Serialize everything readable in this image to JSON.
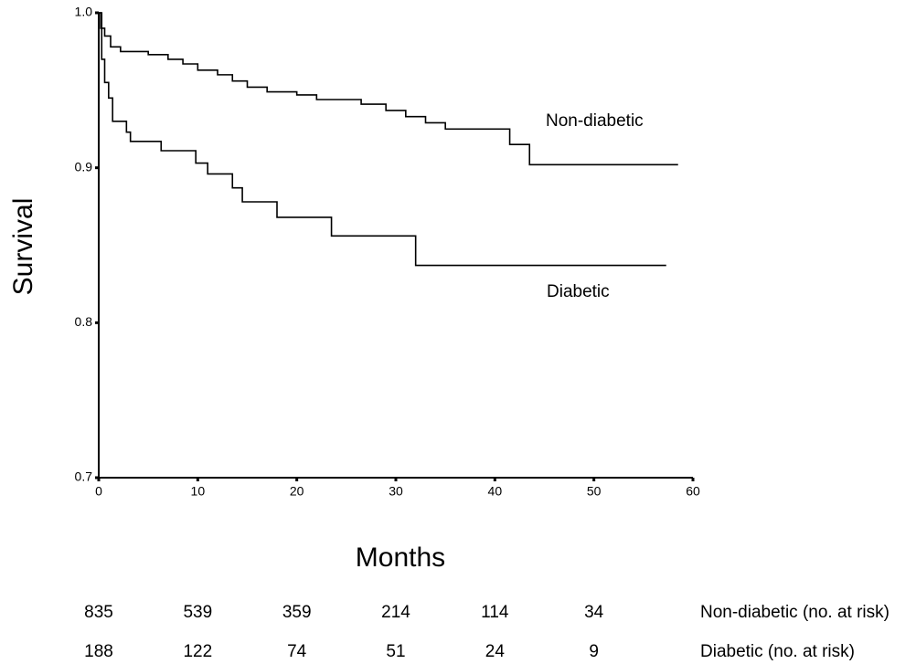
{
  "chart_data": {
    "type": "line",
    "step": true,
    "xlabel": "Months",
    "ylabel": "Survival",
    "xlim": [
      0,
      60
    ],
    "ylim": [
      0.7,
      1
    ],
    "xticks": [
      0,
      10,
      20,
      30,
      40,
      50,
      60
    ],
    "yticks": [
      0.7,
      0.8,
      0.9,
      {
        "value": 1,
        "label": "1.0"
      }
    ],
    "grid": false,
    "series": [
      {
        "name": "Non-diabetic",
        "color": "#000000",
        "x": [
          0,
          0.2,
          0.2,
          0.6,
          0.6,
          1.2,
          1.2,
          2.2,
          2.2,
          5,
          5,
          7,
          7,
          8.5,
          8.5,
          10,
          10,
          12,
          12,
          13.5,
          13.5,
          15,
          15,
          17,
          17,
          20,
          20,
          22,
          22,
          26.5,
          26.5,
          29,
          29,
          31,
          31,
          33,
          33,
          35,
          35,
          41.5,
          41.5,
          43.5,
          43.5,
          58.5
        ],
        "values": [
          1,
          1,
          0.99,
          0.99,
          0.985,
          0.985,
          0.978,
          0.978,
          0.975,
          0.975,
          0.973,
          0.973,
          0.97,
          0.97,
          0.967,
          0.967,
          0.963,
          0.963,
          0.96,
          0.96,
          0.956,
          0.956,
          0.952,
          0.952,
          0.949,
          0.949,
          0.947,
          0.947,
          0.944,
          0.944,
          0.941,
          0.941,
          0.937,
          0.937,
          0.933,
          0.933,
          0.929,
          0.929,
          0.925,
          0.925,
          0.915,
          0.915,
          0.902,
          0.902
        ]
      },
      {
        "name": "Diabetic",
        "color": "#000000",
        "x": [
          0,
          0.3,
          0.3,
          0.6,
          0.6,
          1,
          1,
          1.4,
          1.4,
          2.8,
          2.8,
          3.2,
          3.2,
          6.3,
          6.3,
          9.8,
          9.8,
          11,
          11,
          13.5,
          13.5,
          14.5,
          14.5,
          18,
          18,
          23.5,
          23.5,
          32,
          32,
          57.3
        ],
        "values": [
          1,
          1,
          0.97,
          0.97,
          0.955,
          0.955,
          0.945,
          0.945,
          0.93,
          0.93,
          0.923,
          0.923,
          0.917,
          0.917,
          0.911,
          0.911,
          0.903,
          0.903,
          0.896,
          0.896,
          0.887,
          0.887,
          0.878,
          0.878,
          0.868,
          0.868,
          0.856,
          0.856,
          0.837,
          0.837
        ]
      }
    ],
    "at_risk": [
      {
        "label": "Non-diabetic (no. at risk)",
        "values": [
          835,
          539,
          359,
          214,
          114,
          34
        ]
      },
      {
        "label": "Diabetic  (no. at risk)",
        "values": [
          188,
          122,
          74,
          51,
          24,
          9
        ]
      }
    ]
  }
}
